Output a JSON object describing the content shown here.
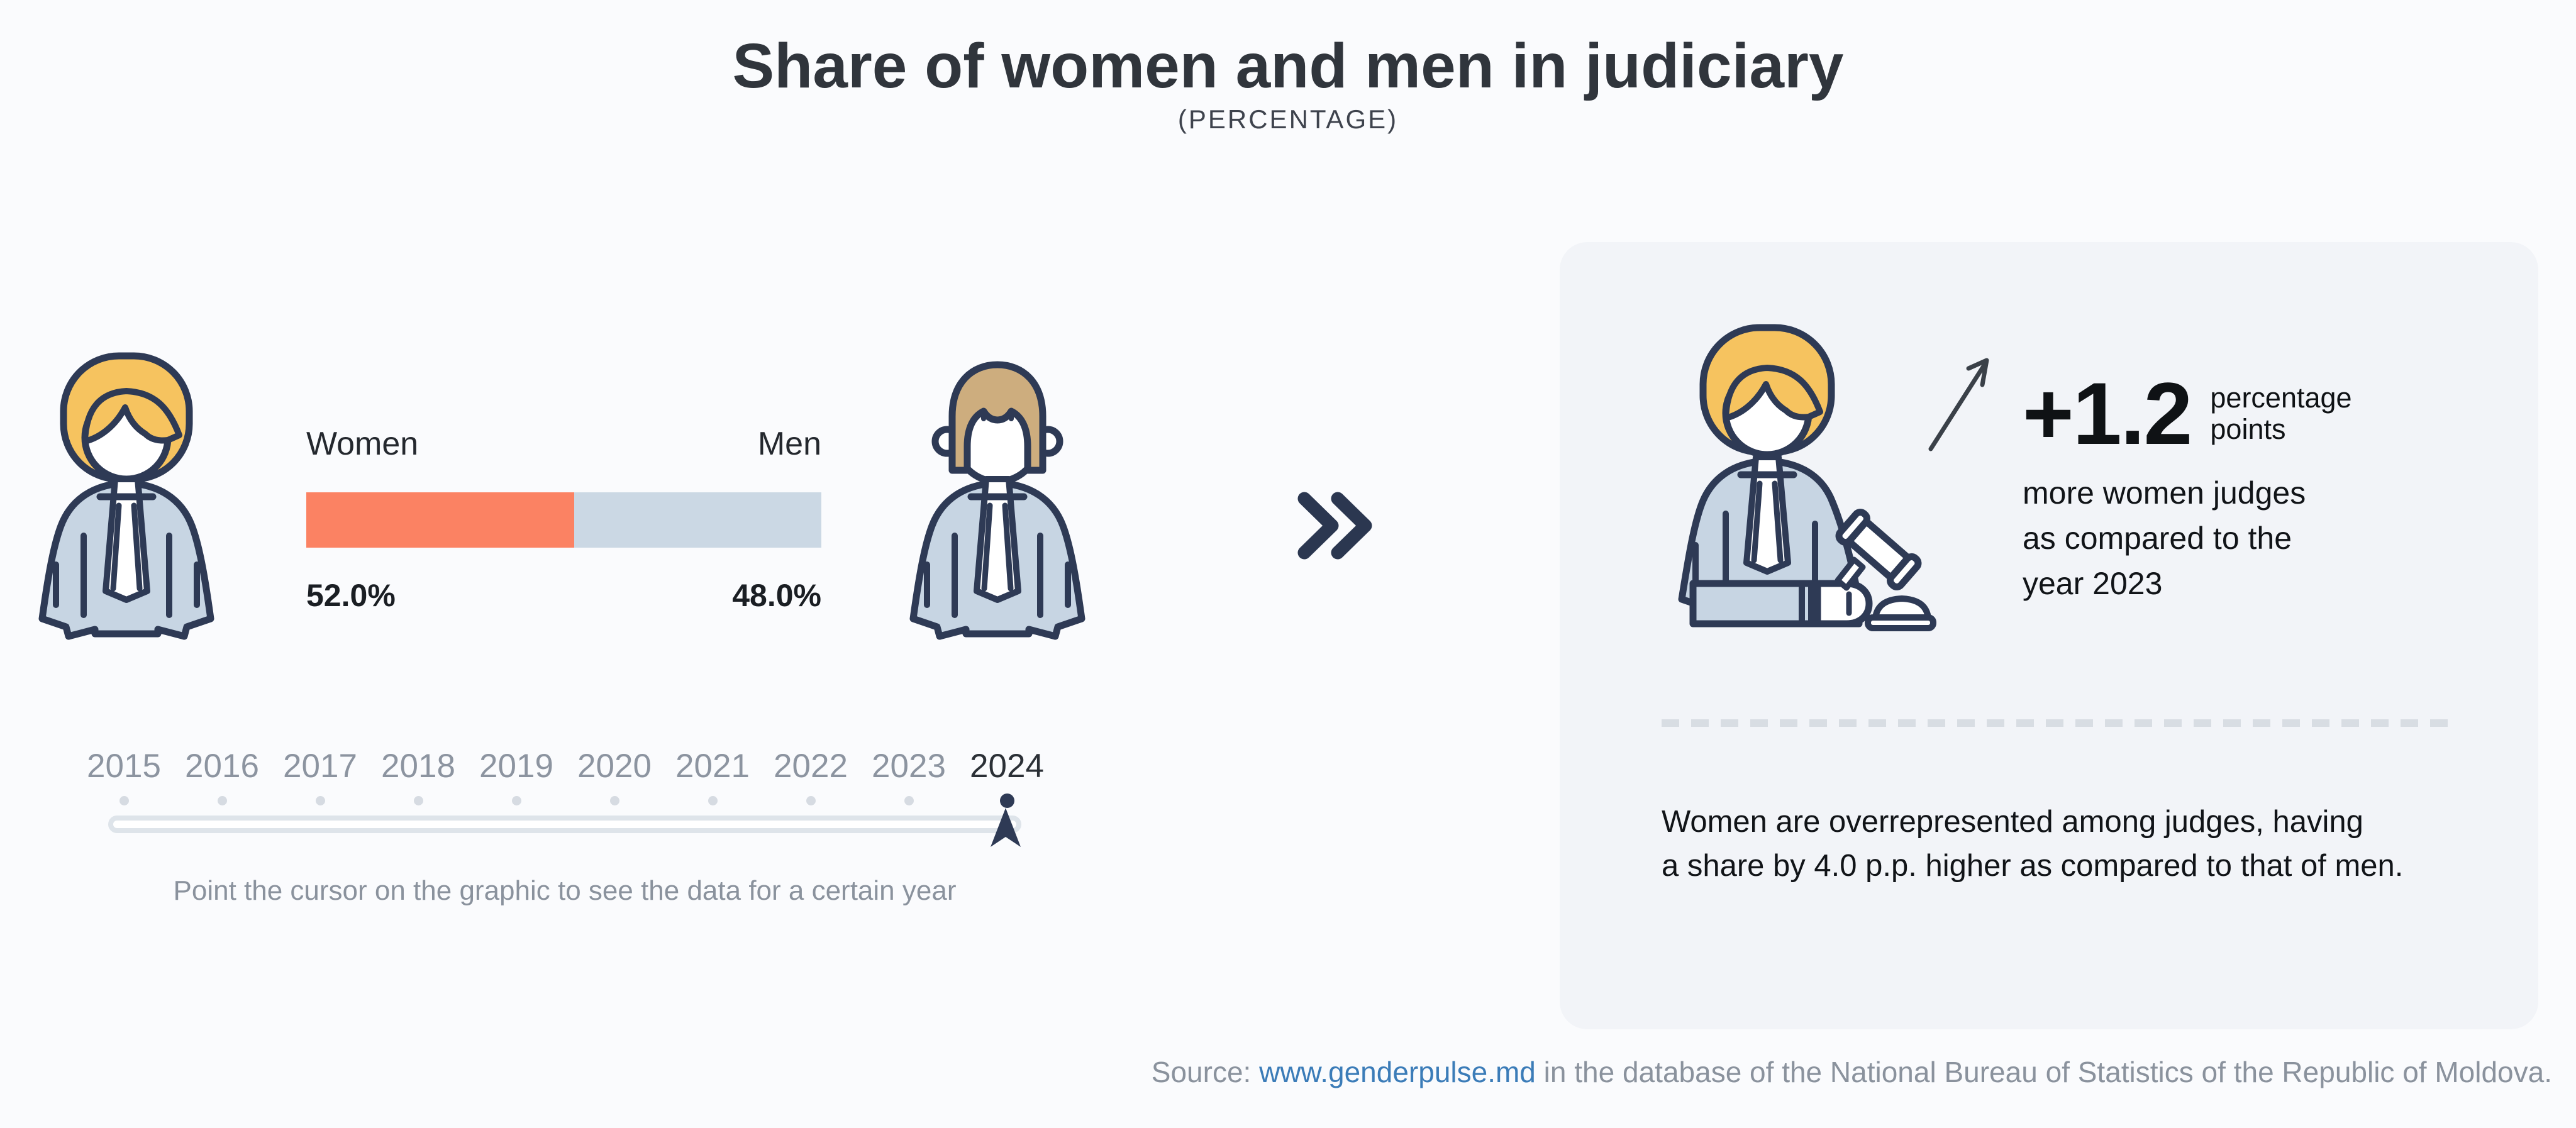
{
  "title": "Share of women and men in judiciary",
  "subtitle": "(PERCENTAGE)",
  "chart_data": {
    "type": "bar",
    "variant": "stacked-100-percent",
    "categories": [
      "Women",
      "Men"
    ],
    "values": [
      52.0,
      48.0
    ],
    "value_labels": [
      "52.0%",
      "48.0%"
    ],
    "series_colors": [
      "#FB8263",
      "#CBD8E4"
    ],
    "selected_year": "2024",
    "timeline_years": [
      "2015",
      "2016",
      "2017",
      "2018",
      "2019",
      "2020",
      "2021",
      "2022",
      "2023",
      "2024"
    ],
    "legend_position": "above-bar",
    "grid": false
  },
  "bar_section": {
    "women_label": "Women",
    "men_label": "Men",
    "women_value": "52.0%",
    "men_value": "48.0%"
  },
  "timeline": {
    "years": [
      "2015",
      "2016",
      "2017",
      "2018",
      "2019",
      "2020",
      "2021",
      "2022",
      "2023",
      "2024"
    ],
    "selected": "2024",
    "hint": "Point the cursor on the graphic to see the data for a certain year"
  },
  "panel": {
    "delta_value": "+1.2",
    "delta_unit_line1": "percentage",
    "delta_unit_line2": "points",
    "description_line1": "more women judges",
    "description_line2": "as compared to the",
    "description_line3": "year 2023",
    "summary_line1": "Women are overrepresented among judges, having",
    "summary_line2": "a share by 4.0 p.p. higher as compared to that of men."
  },
  "footer": {
    "prefix": "Source: ",
    "link": "www.genderpulse.md",
    "suffix": " in the database of the National Bureau of Statistics of the Republic of Moldova."
  },
  "icons": {
    "woman_judge": "woman-judge-icon",
    "man_judge": "man-judge-icon",
    "woman_judge_gavel": "woman-judge-gavel-icon",
    "double_chevron": "double-chevron-right-icon",
    "trend_arrow": "trend-up-arrow-icon",
    "timeline_cursor": "timeline-cursor-icon"
  },
  "colors": {
    "women_accent": "#FB8263",
    "men_accent": "#CBD8E4",
    "navy_outline": "#2E3A55",
    "hair_woman": "#F6C35F",
    "hair_man": "#CDAD7E",
    "robe": "#C7D5E3",
    "panel_bg": "#F2F4F8",
    "page_bg": "#FAFBFD",
    "muted_text": "#8A929D",
    "dark_text": "#30353C",
    "link_blue": "#3B7CB8"
  }
}
